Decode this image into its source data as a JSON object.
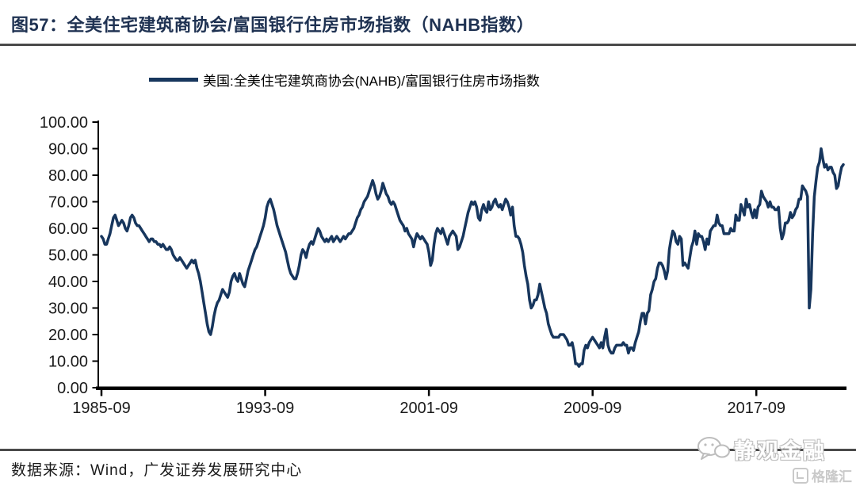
{
  "title": "图57：全美住宅建筑商协会/富国银行住房市场指数（NAHB指数）",
  "legend": {
    "label": "美国:全美住宅建筑商协会(NAHB)/富国银行住房市场指数"
  },
  "footer": {
    "source": "数据来源：Wind，广发证券发展研究中心"
  },
  "watermarks": {
    "wechat_name": "静观金融",
    "gelonghui": "格隆汇"
  },
  "colors": {
    "line": "#17365D",
    "title_text": "#1F3252",
    "rule": "#4A4A4A",
    "axis": "#000000",
    "watermark": "#BDBDBD"
  },
  "chart_data": {
    "type": "line",
    "series_name": "美国:全美住宅建筑商协会(NAHB)/富国银行住房市场指数",
    "frequency": "monthly",
    "x_start": "1985-09",
    "x_end": "2021-12",
    "x_ticks": [
      "1985-09",
      "1993-09",
      "2001-09",
      "2009-09",
      "2017-09"
    ],
    "y_ticks": [
      "100.00",
      "90.00",
      "80.00",
      "70.00",
      "60.00",
      "50.00",
      "40.00",
      "30.00",
      "20.00",
      "10.00",
      "0.00"
    ],
    "ylim": [
      0,
      100
    ],
    "grid": false,
    "legend_position": "top",
    "values": [
      57,
      56,
      54,
      54,
      56,
      58,
      61,
      64,
      65,
      63,
      61,
      62,
      63,
      62,
      60,
      59,
      61,
      64,
      65,
      64,
      62,
      61,
      61,
      60,
      59,
      58,
      57,
      56,
      55,
      56,
      56,
      55,
      55,
      54,
      54,
      53,
      54,
      53,
      52,
      52,
      53,
      52,
      50,
      49,
      48,
      48,
      49,
      48,
      47,
      46,
      45,
      46,
      47,
      48,
      47,
      48,
      45,
      43,
      40,
      36,
      32,
      28,
      24,
      21,
      20,
      23,
      27,
      30,
      32,
      33,
      35,
      37,
      36,
      35,
      34,
      36,
      40,
      42,
      43,
      41,
      40,
      43,
      41,
      39,
      38,
      41,
      44,
      46,
      48,
      50,
      52,
      53,
      55,
      57,
      59,
      61,
      64,
      68,
      70,
      71,
      69,
      67,
      64,
      61,
      59,
      57,
      55,
      53,
      51,
      48,
      45,
      43,
      42,
      41,
      41,
      43,
      46,
      50,
      52,
      51,
      49,
      52,
      54,
      55,
      54,
      56,
      58,
      60,
      59,
      57,
      56,
      55,
      56,
      55,
      56,
      57,
      55,
      56,
      57,
      56,
      55,
      56,
      57,
      56,
      57,
      58,
      58,
      59,
      60,
      62,
      64,
      65,
      67,
      68,
      70,
      71,
      72,
      74,
      76,
      78,
      76,
      73,
      71,
      72,
      74,
      77,
      75,
      73,
      72,
      70,
      69,
      70,
      69,
      67,
      65,
      63,
      62,
      61,
      59,
      60,
      58,
      57,
      56,
      53,
      56,
      58,
      57,
      56,
      57,
      56,
      55,
      54,
      51,
      46,
      48,
      54,
      58,
      60,
      59,
      58,
      60,
      58,
      56,
      54,
      57,
      58,
      59,
      58,
      57,
      52,
      53,
      55,
      57,
      60,
      63,
      66,
      68,
      70,
      69,
      70,
      68,
      64,
      63,
      67,
      69,
      67,
      66,
      70,
      67,
      68,
      70,
      71,
      69,
      68,
      69,
      67,
      69,
      71,
      70,
      68,
      65,
      68,
      61,
      57,
      57,
      56,
      54,
      51,
      46,
      42,
      39,
      33,
      30,
      31,
      33,
      33,
      35,
      39,
      36,
      33,
      30,
      28,
      24,
      22,
      20,
      19,
      19,
      19,
      19,
      20,
      20,
      20,
      19,
      18,
      16,
      16,
      17,
      14,
      9,
      9,
      8,
      9,
      9,
      14,
      16,
      15,
      17,
      18,
      19,
      18,
      17,
      16,
      15,
      17,
      15,
      19,
      22,
      16,
      14,
      13,
      13,
      15,
      16,
      16,
      16,
      16,
      17,
      16,
      16,
      13,
      15,
      15,
      14,
      17,
      19,
      21,
      25,
      28,
      28,
      24,
      28,
      29,
      35,
      37,
      40,
      41,
      45,
      47,
      47,
      46,
      44,
      41,
      44,
      52,
      56,
      59,
      58,
      55,
      54,
      57,
      56,
      46,
      47,
      46,
      45,
      49,
      53,
      55,
      59,
      54,
      58,
      57,
      57,
      55,
      52,
      56,
      54,
      59,
      60,
      61,
      61,
      65,
      62,
      61,
      61,
      58,
      58,
      58,
      58,
      60,
      59,
      59,
      65,
      63,
      63,
      69,
      67,
      65,
      71,
      68,
      69,
      66,
      64,
      67,
      64,
      68,
      69,
      74,
      72,
      71,
      70,
      68,
      70,
      68,
      68,
      67,
      67,
      68,
      60,
      56,
      58,
      62,
      62,
      63,
      66,
      64,
      65,
      67,
      68,
      71,
      71,
      76,
      75,
      74,
      72,
      30,
      37,
      58,
      72,
      78,
      83,
      85,
      90,
      86,
      83,
      84,
      82,
      83,
      83,
      81,
      80,
      75,
      76,
      80,
      83,
      84
    ]
  }
}
